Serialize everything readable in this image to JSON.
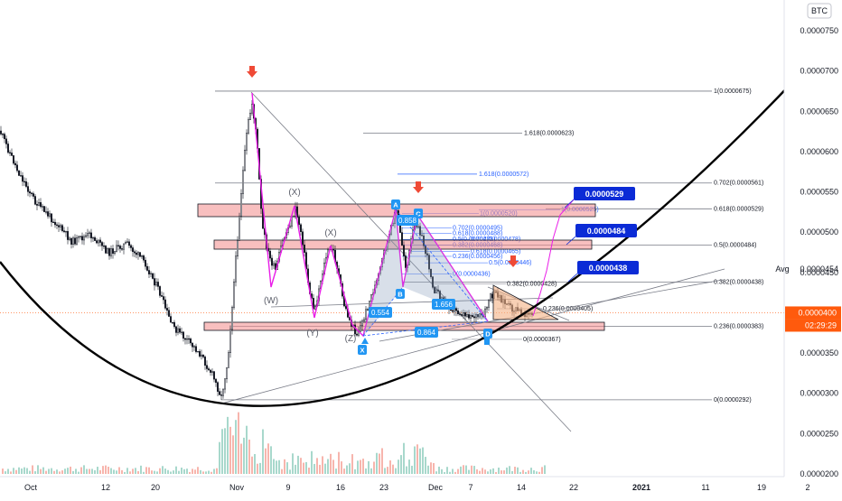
{
  "symbol_badge": "BTC",
  "chart_data": {
    "type": "candlestick",
    "y_axis": {
      "ticks": [
        "0.0000750",
        "0.0000700",
        "0.0000650",
        "0.0000600",
        "0.0000550",
        "0.0000500",
        "0.0000450",
        "0.0000400",
        "0.0000350",
        "0.0000300",
        "0.0000250",
        "0.0000200"
      ],
      "ylim": [
        2e-05,
        7.65e-05
      ]
    },
    "x_axis": {
      "ticks": [
        "Oct",
        "12",
        "20",
        "Nov",
        "9",
        "16",
        "23",
        "Dec",
        "7",
        "14",
        "22",
        "2021",
        "11",
        "19",
        "2"
      ]
    },
    "price_tags": {
      "avg_label": "Avg",
      "avg_value": "0.0000454",
      "last_price": "0.0000400",
      "countdown": "02:29:29"
    },
    "targets": [
      "0.0000529",
      "0.0000484",
      "0.0000438"
    ],
    "fib_levels": [
      {
        "label": "1(0.0000675)",
        "value": 6.75e-05
      },
      {
        "label": "1.618(0.0000623)",
        "value": 6.23e-05
      },
      {
        "label": "1.618(0.0000572)",
        "value": 5.72e-05
      },
      {
        "label": "0.702(0.0000561)",
        "value": 5.61e-05
      },
      {
        "label": "0.618(0.0000529)",
        "value": 5.29e-05
      },
      {
        "label": "0.5(0.0000484)",
        "value": 4.84e-05
      },
      {
        "label": "0.382(0.0000438)",
        "value": 4.38e-05
      },
      {
        "label": "0.236(0.0000383)",
        "value": 3.83e-05
      },
      {
        "label": "0(0.0000292)",
        "value": 2.92e-05
      }
    ],
    "fib_levels_inner": [
      {
        "label": "1(0.0000525)",
        "value": 5.25e-05
      },
      {
        "label": "1(0.0000520)",
        "value": 5.2e-05
      },
      {
        "label": "0.702(0.0000495)",
        "value": 4.95e-05
      },
      {
        "label": "0.618(0.0000488)",
        "value": 4.88e-05
      },
      {
        "label": "0.5(0.0000478)",
        "value": 4.78e-05
      },
      {
        "label": "0.702(0.0000478)",
        "value": 4.78e-05
      },
      {
        "label": "0.382(0.0000468)",
        "value": 4.68e-05
      },
      {
        "label": "0.618(0.0000465)",
        "value": 4.65e-05
      },
      {
        "label": "0.236(0.0000456)",
        "value": 4.56e-05
      },
      {
        "label": "0.5(0.0000446)",
        "value": 4.46e-05
      },
      {
        "label": "0(0.0000436)",
        "value": 4.36e-05
      },
      {
        "label": "0.382(0.0000428)",
        "value": 4.28e-05
      },
      {
        "label": "0.236(0.0000405)",
        "value": 4.05e-05
      },
      {
        "label": "0(0.0000367)",
        "value": 3.67e-05
      }
    ],
    "wave_labels": [
      "(X)",
      "(X)",
      "(W)",
      "(Y)",
      "(Z)"
    ],
    "harmonic_points": [
      "X",
      "A",
      "B",
      "C",
      "D"
    ],
    "harmonic_ratios": [
      "0.554",
      "0.858",
      "1.656",
      "0.864"
    ],
    "colors": {
      "candle": "#131722",
      "harmonic": "#e91ee8",
      "resistance_zone": "#f28b8b",
      "target_box": "#0b2bd6",
      "arrow": "#ef4a36",
      "last_price": "#ff5a0d"
    }
  }
}
